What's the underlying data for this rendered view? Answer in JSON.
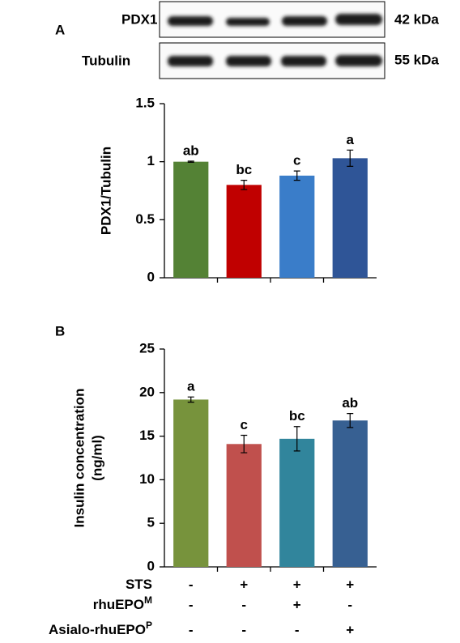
{
  "blot": {
    "rows": [
      {
        "name": "PDX1",
        "size": "42 kDa"
      },
      {
        "name": "Tubulin",
        "size": "55 kDa"
      }
    ]
  },
  "chart_data": [
    {
      "type": "bar",
      "panel": "A",
      "ylabel": [
        "PDX1/Tubulin"
      ],
      "categories": [
        null,
        null,
        null,
        null
      ],
      "values": [
        1.0,
        0.8,
        0.88,
        1.03
      ],
      "errors": [
        0.005,
        0.04,
        0.04,
        0.07
      ],
      "annotations": [
        "ab",
        "bc",
        "c",
        "a"
      ],
      "colors": [
        "#548235",
        "#c00000",
        "#3a7dc9",
        "#2f5597"
      ],
      "ylim": [
        0,
        1.5
      ],
      "yticks": [
        0,
        0.5,
        1,
        1.5
      ],
      "grid": false
    },
    {
      "type": "bar",
      "panel": "B",
      "ylabel": [
        "Insulin concentration",
        "(ng/ml)"
      ],
      "categories": [
        null,
        null,
        null,
        null
      ],
      "values": [
        19.2,
        14.1,
        14.7,
        16.8
      ],
      "errors": [
        0.3,
        1.0,
        1.4,
        0.8
      ],
      "annotations": [
        "a",
        "c",
        "bc",
        "ab"
      ],
      "colors": [
        "#77933c",
        "#c0504d",
        "#31859c",
        "#376092"
      ],
      "ylim": [
        0,
        25
      ],
      "yticks": [
        0,
        5,
        10,
        15,
        20,
        25
      ],
      "grid": false,
      "conditions": [
        {
          "label": "STS",
          "sup": null,
          "marks": [
            "-",
            "+",
            "+",
            "+"
          ]
        },
        {
          "label": "rhuEPO",
          "sup": "M",
          "marks": [
            "-",
            "-",
            "+",
            "-"
          ]
        },
        {
          "label": "Asialo-rhuEPO",
          "sup": "P",
          "marks": [
            "-",
            "-",
            "-",
            "+"
          ]
        }
      ]
    }
  ]
}
